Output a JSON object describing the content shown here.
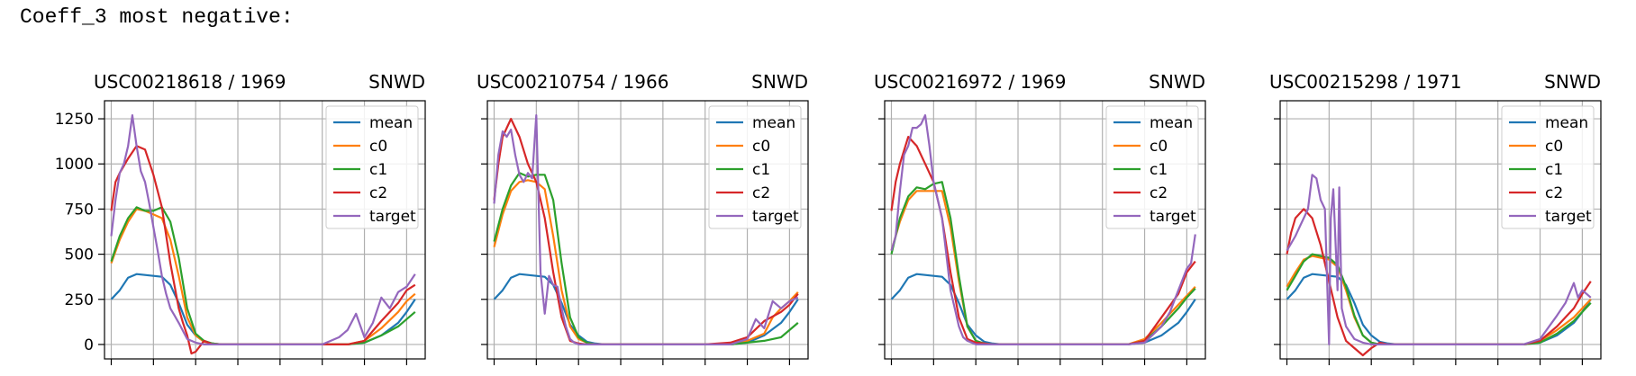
{
  "heading": "Coeff_3 most negative:",
  "legend_labels": [
    "mean",
    "c0",
    "c1",
    "c2",
    "target"
  ],
  "colors": {
    "mean": "#1f77b4",
    "c0": "#ff7f0e",
    "c1": "#2ca02c",
    "c2": "#d62728",
    "target": "#9467bd",
    "grid": "#b0b0b0"
  },
  "chart_data": [
    {
      "type": "line",
      "title_left": "USC00218618 / 1969",
      "title_right": "SNWD",
      "xlim": [
        -8,
        372
      ],
      "ylim": [
        -80,
        1350
      ],
      "yticks": [
        0,
        250,
        500,
        750,
        1000,
        1250
      ],
      "show_y_ticklabels": true,
      "grid": true,
      "legend_position": "upper right",
      "series": [
        {
          "key": "mean",
          "x": [
            0,
            10,
            20,
            30,
            40,
            50,
            60,
            70,
            80,
            90,
            100,
            110,
            120,
            130,
            140,
            250,
            280,
            300,
            320,
            340,
            350,
            360
          ],
          "values": [
            250,
            300,
            370,
            390,
            385,
            380,
            375,
            330,
            230,
            110,
            50,
            15,
            5,
            0,
            0,
            0,
            0,
            10,
            50,
            120,
            180,
            250
          ]
        },
        {
          "key": "c0",
          "x": [
            0,
            10,
            20,
            30,
            40,
            50,
            60,
            70,
            80,
            90,
            100,
            110,
            120,
            130,
            140,
            250,
            280,
            300,
            320,
            340,
            350,
            360
          ],
          "values": [
            450,
            580,
            680,
            750,
            740,
            720,
            700,
            580,
            380,
            150,
            50,
            15,
            5,
            0,
            0,
            0,
            0,
            20,
            90,
            180,
            240,
            280
          ]
        },
        {
          "key": "c1",
          "x": [
            0,
            10,
            20,
            30,
            40,
            50,
            60,
            70,
            80,
            90,
            100,
            110,
            120,
            130,
            140,
            250,
            280,
            300,
            320,
            340,
            350,
            360
          ],
          "values": [
            460,
            600,
            700,
            760,
            740,
            740,
            760,
            680,
            480,
            200,
            60,
            20,
            5,
            0,
            0,
            0,
            0,
            10,
            50,
            100,
            140,
            180
          ]
        },
        {
          "key": "c2",
          "x": [
            0,
            5,
            10,
            20,
            30,
            40,
            50,
            60,
            70,
            80,
            85,
            90,
            95,
            100,
            110,
            120,
            130,
            250,
            280,
            300,
            320,
            340,
            350,
            360
          ],
          "values": [
            740,
            900,
            950,
            1030,
            1100,
            1080,
            940,
            760,
            450,
            200,
            120,
            50,
            -50,
            -40,
            20,
            0,
            0,
            0,
            0,
            20,
            130,
            230,
            300,
            330
          ]
        },
        {
          "key": "target",
          "x": [
            0,
            5,
            10,
            15,
            20,
            25,
            30,
            35,
            40,
            45,
            50,
            55,
            60,
            65,
            70,
            75,
            80,
            90,
            100,
            110,
            120,
            130,
            250,
            260,
            270,
            280,
            290,
            300,
            310,
            320,
            330,
            340,
            350,
            360
          ],
          "values": [
            600,
            800,
            950,
            1000,
            1100,
            1270,
            1100,
            960,
            900,
            780,
            650,
            520,
            380,
            280,
            200,
            160,
            120,
            30,
            10,
            0,
            0,
            0,
            0,
            20,
            40,
            80,
            170,
            40,
            120,
            260,
            200,
            290,
            320,
            390
          ]
        }
      ]
    },
    {
      "type": "line",
      "title_left": "USC00210754 / 1966",
      "title_right": "SNWD",
      "xlim": [
        -8,
        372
      ],
      "ylim": [
        -80,
        1350
      ],
      "yticks": [
        0,
        250,
        500,
        750,
        1000,
        1250
      ],
      "show_y_ticklabels": false,
      "grid": true,
      "legend_position": "upper right",
      "series": [
        {
          "key": "mean",
          "x": [
            0,
            10,
            20,
            30,
            40,
            50,
            60,
            70,
            80,
            90,
            100,
            110,
            120,
            130,
            140,
            250,
            280,
            300,
            320,
            340,
            350,
            360
          ],
          "values": [
            250,
            300,
            370,
            390,
            385,
            380,
            375,
            330,
            230,
            110,
            50,
            15,
            5,
            0,
            0,
            0,
            0,
            10,
            50,
            120,
            180,
            250
          ]
        },
        {
          "key": "c0",
          "x": [
            0,
            10,
            20,
            30,
            40,
            50,
            60,
            70,
            80,
            90,
            100,
            110,
            120,
            130,
            250,
            280,
            300,
            320,
            330,
            340,
            350,
            360
          ],
          "values": [
            540,
            720,
            850,
            900,
            910,
            900,
            860,
            600,
            300,
            100,
            30,
            10,
            0,
            0,
            0,
            0,
            20,
            60,
            150,
            200,
            240,
            290
          ]
        },
        {
          "key": "c1",
          "x": [
            0,
            10,
            20,
            30,
            40,
            50,
            60,
            70,
            80,
            90,
            100,
            110,
            120,
            130,
            250,
            280,
            300,
            320,
            340,
            350,
            360
          ],
          "values": [
            570,
            750,
            880,
            950,
            930,
            940,
            940,
            800,
            450,
            150,
            40,
            10,
            0,
            0,
            0,
            0,
            10,
            20,
            40,
            80,
            120
          ]
        },
        {
          "key": "c2",
          "x": [
            0,
            5,
            10,
            20,
            30,
            40,
            50,
            60,
            70,
            80,
            90,
            100,
            110,
            120,
            130,
            250,
            280,
            300,
            320,
            340,
            350,
            360
          ],
          "values": [
            800,
            1000,
            1150,
            1250,
            1150,
            1000,
            900,
            700,
            400,
            150,
            20,
            5,
            0,
            0,
            0,
            0,
            10,
            40,
            130,
            180,
            220,
            280
          ]
        },
        {
          "key": "target",
          "x": [
            0,
            5,
            10,
            15,
            20,
            25,
            30,
            35,
            40,
            45,
            50,
            55,
            60,
            65,
            70,
            75,
            80,
            85,
            90,
            95,
            100,
            110,
            120,
            250,
            280,
            300,
            310,
            320,
            330,
            340,
            350,
            360
          ],
          "values": [
            780,
            1050,
            1180,
            1150,
            1190,
            1050,
            940,
            900,
            950,
            920,
            1270,
            400,
            170,
            380,
            330,
            320,
            200,
            100,
            30,
            10,
            0,
            0,
            0,
            0,
            0,
            30,
            140,
            90,
            240,
            200,
            240,
            260
          ]
        }
      ]
    },
    {
      "type": "line",
      "title_left": "USC00216972 / 1969",
      "title_right": "SNWD",
      "xlim": [
        -8,
        372
      ],
      "ylim": [
        -80,
        1350
      ],
      "yticks": [
        0,
        250,
        500,
        750,
        1000,
        1250
      ],
      "show_y_ticklabels": false,
      "grid": true,
      "legend_position": "upper right",
      "series": [
        {
          "key": "mean",
          "x": [
            0,
            10,
            20,
            30,
            40,
            50,
            60,
            70,
            80,
            90,
            100,
            110,
            120,
            130,
            140,
            250,
            280,
            300,
            320,
            340,
            350,
            360
          ],
          "values": [
            250,
            300,
            370,
            390,
            385,
            380,
            375,
            330,
            230,
            110,
            50,
            15,
            5,
            0,
            0,
            0,
            0,
            10,
            50,
            120,
            180,
            250
          ]
        },
        {
          "key": "c0",
          "x": [
            0,
            10,
            20,
            30,
            40,
            50,
            60,
            70,
            80,
            90,
            100,
            110,
            120,
            130,
            250,
            280,
            300,
            320,
            340,
            350,
            360
          ],
          "values": [
            520,
            680,
            800,
            850,
            850,
            850,
            850,
            650,
            350,
            100,
            20,
            5,
            0,
            0,
            0,
            0,
            30,
            120,
            220,
            270,
            320
          ]
        },
        {
          "key": "c1",
          "x": [
            0,
            10,
            20,
            30,
            40,
            50,
            60,
            70,
            80,
            90,
            100,
            110,
            120,
            130,
            250,
            280,
            300,
            320,
            340,
            350,
            360
          ],
          "values": [
            500,
            700,
            820,
            870,
            860,
            890,
            900,
            700,
            380,
            100,
            20,
            5,
            0,
            0,
            0,
            0,
            20,
            100,
            200,
            260,
            310
          ]
        },
        {
          "key": "c2",
          "x": [
            0,
            5,
            10,
            20,
            30,
            40,
            50,
            60,
            70,
            80,
            90,
            100,
            110,
            120,
            250,
            280,
            300,
            320,
            340,
            350,
            360
          ],
          "values": [
            740,
            900,
            1000,
            1150,
            1100,
            1000,
            900,
            700,
            400,
            150,
            30,
            10,
            5,
            0,
            0,
            0,
            20,
            150,
            280,
            400,
            460
          ]
        },
        {
          "key": "target",
          "x": [
            0,
            5,
            10,
            15,
            20,
            25,
            30,
            35,
            40,
            45,
            50,
            55,
            60,
            65,
            70,
            75,
            80,
            85,
            90,
            95,
            100,
            110,
            120,
            250,
            280,
            300,
            320,
            330,
            340,
            350,
            355,
            360
          ],
          "values": [
            520,
            600,
            850,
            1050,
            1100,
            1200,
            1200,
            1220,
            1270,
            1100,
            900,
            800,
            700,
            500,
            300,
            200,
            100,
            40,
            20,
            10,
            0,
            0,
            0,
            0,
            0,
            10,
            100,
            180,
            300,
            420,
            450,
            610
          ]
        }
      ]
    },
    {
      "type": "line",
      "title_left": "USC00215298 / 1971",
      "title_right": "SNWD",
      "xlim": [
        -8,
        372
      ],
      "ylim": [
        -80,
        1350
      ],
      "yticks": [
        0,
        250,
        500,
        750,
        1000,
        1250
      ],
      "show_y_ticklabels": false,
      "grid": true,
      "legend_position": "upper right",
      "series": [
        {
          "key": "mean",
          "x": [
            0,
            10,
            20,
            30,
            40,
            50,
            60,
            70,
            80,
            90,
            100,
            110,
            120,
            130,
            140,
            250,
            280,
            300,
            320,
            340,
            350,
            360
          ],
          "values": [
            250,
            300,
            370,
            390,
            385,
            380,
            375,
            330,
            230,
            110,
            50,
            15,
            5,
            0,
            0,
            0,
            0,
            10,
            50,
            120,
            180,
            250
          ]
        },
        {
          "key": "c0",
          "x": [
            0,
            10,
            20,
            30,
            40,
            50,
            60,
            70,
            80,
            90,
            100,
            110,
            120,
            250,
            280,
            300,
            320,
            340,
            350,
            360
          ],
          "values": [
            320,
            400,
            470,
            490,
            480,
            470,
            430,
            300,
            150,
            50,
            10,
            0,
            0,
            0,
            0,
            20,
            80,
            150,
            200,
            250
          ]
        },
        {
          "key": "c1",
          "x": [
            0,
            10,
            20,
            30,
            40,
            50,
            60,
            70,
            80,
            90,
            100,
            110,
            120,
            250,
            280,
            300,
            320,
            340,
            350,
            360
          ],
          "values": [
            300,
            380,
            460,
            500,
            490,
            480,
            440,
            320,
            160,
            50,
            10,
            0,
            0,
            0,
            0,
            10,
            60,
            130,
            180,
            230
          ]
        },
        {
          "key": "c2",
          "x": [
            0,
            5,
            10,
            20,
            30,
            40,
            50,
            60,
            70,
            80,
            90,
            100,
            110,
            120,
            130,
            250,
            280,
            300,
            320,
            340,
            350,
            360
          ],
          "values": [
            500,
            620,
            700,
            750,
            700,
            550,
            350,
            150,
            20,
            -20,
            -60,
            -20,
            10,
            0,
            0,
            0,
            0,
            20,
            100,
            200,
            280,
            350
          ]
        },
        {
          "key": "target",
          "x": [
            0,
            5,
            10,
            15,
            20,
            25,
            30,
            35,
            40,
            45,
            50,
            52,
            55,
            60,
            62,
            65,
            70,
            80,
            90,
            100,
            110,
            250,
            280,
            300,
            320,
            330,
            340,
            345,
            350,
            355,
            360
          ],
          "values": [
            520,
            560,
            600,
            650,
            700,
            750,
            940,
            920,
            800,
            750,
            0,
            700,
            860,
            300,
            870,
            200,
            100,
            30,
            10,
            0,
            0,
            0,
            0,
            30,
            160,
            230,
            340,
            260,
            300,
            280,
            260
          ]
        }
      ]
    }
  ]
}
